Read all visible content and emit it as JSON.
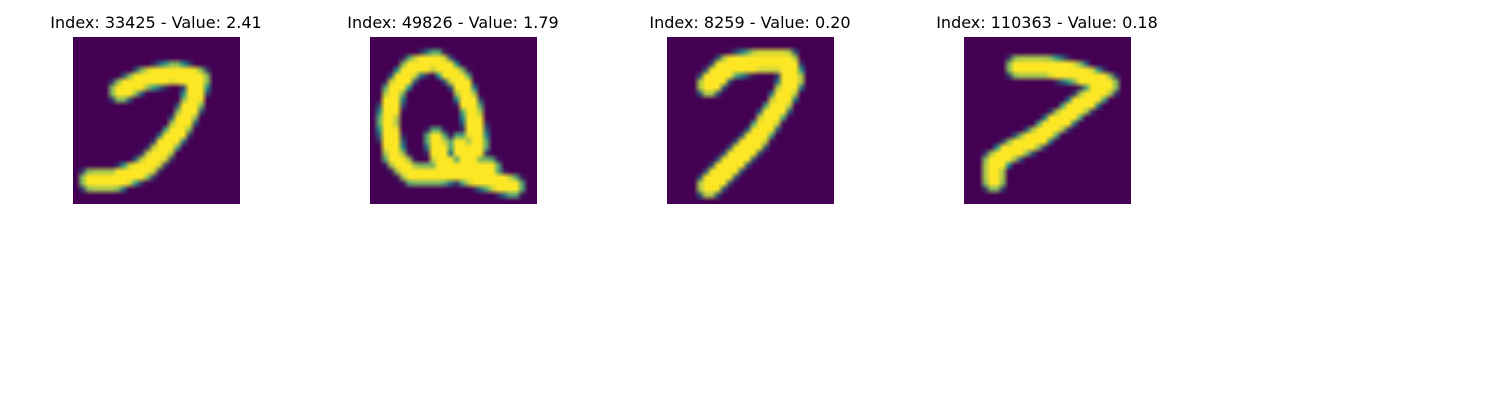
{
  "chart_data": {
    "type": "image-grid",
    "colormap": "viridis",
    "colors": {
      "background": "#440154",
      "mid": "#21918c",
      "foreground": "#fde725"
    },
    "panels": [
      {
        "title": "Index: 33425 - Value: 2.41",
        "index": 33425,
        "value": 2.41,
        "depicts": "handwritten digit resembling a 7 with long curved tail",
        "strokes": [
          [
            [
              8,
              9
            ],
            [
              12,
              7
            ],
            [
              17,
              6
            ],
            [
              21,
              7
            ]
          ],
          [
            [
              21,
              7
            ],
            [
              20,
              11
            ],
            [
              18,
              15
            ],
            [
              15,
              19
            ],
            [
              12,
              22
            ],
            [
              7,
              24
            ],
            [
              3,
              24
            ]
          ]
        ],
        "stroke_width": 2.6
      },
      {
        "title": "Index: 49826 - Value: 1.79",
        "index": 49826,
        "value": 1.79,
        "depicts": "handwritten loop shape with filled lower-right blob",
        "strokes": [
          [
            [
              7,
              5
            ],
            [
              4,
              9
            ],
            [
              3,
              14
            ],
            [
              4,
              20
            ],
            [
              7,
              23
            ],
            [
              12,
              23
            ],
            [
              16,
              22
            ],
            [
              18,
              18
            ],
            [
              17,
              12
            ],
            [
              15,
              7
            ],
            [
              11,
              4
            ],
            [
              7,
              5
            ]
          ],
          [
            [
              11,
              17
            ],
            [
              12,
              21
            ],
            [
              16,
              23
            ],
            [
              20,
              24
            ],
            [
              24,
              25
            ]
          ],
          [
            [
              15,
              18
            ],
            [
              17,
              22
            ],
            [
              20,
              22
            ]
          ]
        ],
        "stroke_width": 2.4
      },
      {
        "title": "Index: 8259 - Value: 0.20",
        "index": 8259,
        "value": 0.2,
        "depicts": "handwritten digit 7",
        "strokes": [
          [
            [
              7,
              8
            ],
            [
              10,
              5
            ],
            [
              15,
              4
            ],
            [
              20,
              4
            ],
            [
              21,
              7
            ]
          ],
          [
            [
              21,
              7
            ],
            [
              19,
              11
            ],
            [
              17,
              14
            ],
            [
              15,
              17
            ],
            [
              11,
              21
            ],
            [
              7,
              25
            ]
          ]
        ],
        "stroke_width": 2.8
      },
      {
        "title": "Index: 110363 - Value: 0.18",
        "index": 110363,
        "value": 0.18,
        "depicts": "handwritten digit 7 with flat top",
        "strokes": [
          [
            [
              9,
              5
            ],
            [
              14,
              5
            ],
            [
              19,
              6
            ],
            [
              24,
              8
            ]
          ],
          [
            [
              24,
              8
            ],
            [
              20,
              11
            ],
            [
              16,
              14
            ],
            [
              12,
              17
            ],
            [
              8,
              19
            ],
            [
              5,
              21
            ],
            [
              5,
              24
            ]
          ]
        ],
        "stroke_width": 2.6
      }
    ]
  }
}
